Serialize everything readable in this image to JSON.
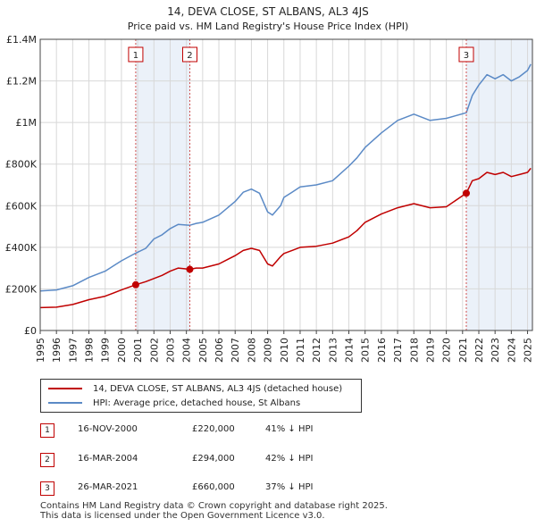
{
  "chart_data": {
    "type": "line",
    "title": "14, DEVA CLOSE, ST ALBANS, AL3 4JS",
    "subtitle": "Price paid vs. HM Land Registry's House Price Index (HPI)",
    "ylim": [
      0,
      1400000
    ],
    "xlim": [
      1995,
      2025.3
    ],
    "yticks": [
      0,
      200000,
      400000,
      600000,
      800000,
      1000000,
      1200000,
      1400000
    ],
    "ytick_labels": [
      "£0",
      "£200K",
      "£400K",
      "£600K",
      "£800K",
      "£1M",
      "£1.2M",
      "£1.4M"
    ],
    "xticks": [
      "1995",
      "1996",
      "1997",
      "1998",
      "1999",
      "2000",
      "2001",
      "2002",
      "2003",
      "2004",
      "2005",
      "2006",
      "2007",
      "2008",
      "2009",
      "2010",
      "2011",
      "2012",
      "2013",
      "2014",
      "2015",
      "2016",
      "2017",
      "2018",
      "2019",
      "2020",
      "2021",
      "2022",
      "2023",
      "2024",
      "2025"
    ],
    "colors": {
      "price": "#c00000",
      "hpi": "#5b8ac6",
      "shade": "#dde7f5",
      "sale_line": "#d05050"
    },
    "series": [
      {
        "name": "14, DEVA CLOSE, ST ALBANS, AL3 4JS (detached house)",
        "x": [
          1995,
          1996,
          1997,
          1998,
          1999,
          2000,
          2000.88,
          2001.5,
          2002,
          2002.5,
          2003,
          2003.5,
          2004.21,
          2004.6,
          2005,
          2006,
          2007,
          2007.5,
          2008,
          2008.5,
          2009,
          2009.3,
          2009.8,
          2010,
          2010.5,
          2011,
          2012,
          2013,
          2014,
          2014.5,
          2015,
          2016,
          2017,
          2018,
          2019,
          2020,
          2021.23,
          2021.6,
          2022,
          2022.5,
          2023,
          2023.5,
          2024,
          2024.5,
          2025,
          2025.2
        ],
        "values": [
          110000,
          112000,
          125000,
          148000,
          165000,
          195000,
          220000,
          235000,
          250000,
          265000,
          285000,
          300000,
          294000,
          300000,
          300000,
          320000,
          360000,
          385000,
          395000,
          385000,
          320000,
          310000,
          355000,
          370000,
          385000,
          400000,
          405000,
          420000,
          450000,
          480000,
          520000,
          560000,
          590000,
          610000,
          590000,
          595000,
          660000,
          720000,
          730000,
          760000,
          750000,
          760000,
          740000,
          750000,
          760000,
          780000
        ]
      },
      {
        "name": "HPI: Average price, detached house, St Albans",
        "x": [
          1995,
          1996,
          1997,
          1998,
          1999,
          2000,
          2000.88,
          2001.5,
          2002,
          2002.5,
          2003,
          2003.5,
          2004.21,
          2004.6,
          2005,
          2006,
          2007,
          2007.5,
          2008,
          2008.5,
          2009,
          2009.3,
          2009.8,
          2010,
          2010.5,
          2011,
          2012,
          2013,
          2014,
          2014.5,
          2015,
          2016,
          2017,
          2018,
          2019,
          2020,
          2021.23,
          2021.6,
          2022,
          2022.5,
          2023,
          2023.5,
          2024,
          2024.5,
          2025,
          2025.2
        ],
        "values": [
          190000,
          195000,
          215000,
          255000,
          285000,
          335000,
          372000,
          395000,
          440000,
          460000,
          490000,
          510000,
          506000,
          515000,
          520000,
          555000,
          620000,
          665000,
          680000,
          660000,
          570000,
          555000,
          600000,
          640000,
          665000,
          690000,
          700000,
          720000,
          790000,
          830000,
          880000,
          950000,
          1010000,
          1040000,
          1010000,
          1020000,
          1047000,
          1130000,
          1180000,
          1230000,
          1210000,
          1230000,
          1200000,
          1220000,
          1250000,
          1280000
        ]
      }
    ],
    "sales": [
      {
        "num": "1",
        "x": 2000.88,
        "value": 220000,
        "date": "16-NOV-2000",
        "price": "£220,000",
        "hpi": "41% ↓ HPI"
      },
      {
        "num": "2",
        "x": 2004.21,
        "value": 294000,
        "date": "16-MAR-2004",
        "price": "£294,000",
        "hpi": "42% ↓ HPI"
      },
      {
        "num": "3",
        "x": 2021.23,
        "value": 660000,
        "date": "26-MAR-2021",
        "price": "£660,000",
        "hpi": "37% ↓ HPI"
      }
    ]
  },
  "legend": {
    "price_label": "14, DEVA CLOSE, ST ALBANS, AL3 4JS (detached house)",
    "hpi_label": "HPI: Average price, detached house, St Albans"
  },
  "footer": {
    "line1": "Contains HM Land Registry data © Crown copyright and database right 2025.",
    "line2": "This data is licensed under the Open Government Licence v3.0."
  }
}
